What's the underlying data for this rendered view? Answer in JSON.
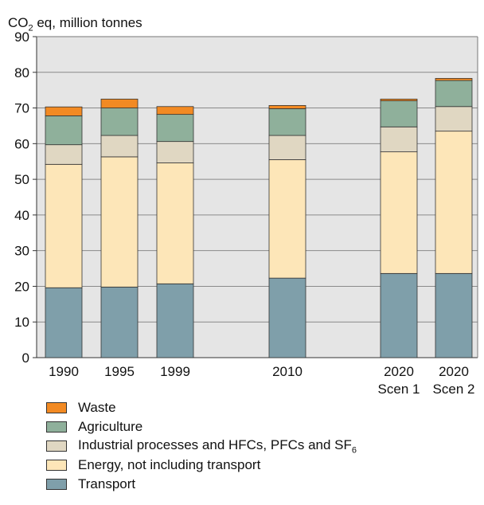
{
  "chart_data": {
    "type": "bar",
    "stacked": true,
    "ylabel_prefix": "CO",
    "ylabel_sub": "2",
    "ylabel_suffix": " eq, million tonnes",
    "ylim": [
      0,
      90
    ],
    "yticks": [
      0,
      10,
      20,
      30,
      40,
      50,
      60,
      70,
      80,
      90
    ],
    "grid": true,
    "plot_background": "#e5e5e5",
    "legend_position": "bottom-left",
    "categories": [
      {
        "line1": "1990",
        "line2": ""
      },
      {
        "line1": "1995",
        "line2": ""
      },
      {
        "line1": "1999",
        "line2": ""
      },
      {
        "line1": "2010",
        "line2": ""
      },
      {
        "line1": "2020",
        "line2": "Scen 1"
      },
      {
        "line1": "2020",
        "line2": "Scen 2"
      }
    ],
    "series": [
      {
        "name": "Transport",
        "color": "#7f9faa",
        "values": [
          19.6,
          19.8,
          20.7,
          22.3,
          23.6,
          23.6
        ]
      },
      {
        "name": "Energy, not including transport",
        "color": "#fde6b8",
        "values": [
          34.6,
          36.5,
          33.9,
          33.2,
          34.1,
          39.9
        ]
      },
      {
        "name_main": "Industrial processes and HFCs, PFCs and SF",
        "name_sub": "6",
        "color": "#e0d7c2",
        "values": [
          5.5,
          6.0,
          6.0,
          6.8,
          7.0,
          6.9
        ]
      },
      {
        "name": "Agriculture",
        "color": "#8fb09b",
        "values": [
          8.1,
          7.7,
          7.6,
          7.5,
          7.3,
          7.3
        ]
      },
      {
        "name": "Waste",
        "color": "#f28a23",
        "values": [
          2.5,
          2.5,
          2.2,
          0.9,
          0.5,
          0.6
        ]
      }
    ]
  },
  "legend": [
    {
      "label": "Waste",
      "color": "#f28a23"
    },
    {
      "label": "Agriculture",
      "color": "#8fb09b"
    },
    {
      "label_main": "Industrial processes and HFCs, PFCs and SF",
      "label_sub": "6",
      "color": "#e0d7c2"
    },
    {
      "label": "Energy, not including transport",
      "color": "#fde6b8"
    },
    {
      "label": "Transport",
      "color": "#7f9faa"
    }
  ]
}
